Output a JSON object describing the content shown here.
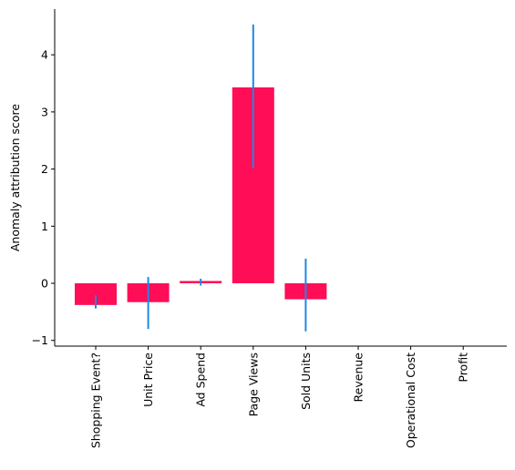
{
  "chart_data": {
    "type": "bar",
    "title": "",
    "xlabel": "",
    "ylabel": "Anomaly attribution score",
    "categories": [
      "Shopping Event?",
      "Unit Price",
      "Ad Spend",
      "Page Views",
      "Sold Units",
      "Revenue",
      "Operational Cost",
      "Profit"
    ],
    "series": [
      {
        "values": [
          -0.38,
          -0.33,
          0.04,
          3.43,
          -0.28,
          null,
          null,
          null
        ],
        "error_low": [
          -0.44,
          -0.8,
          -0.04,
          2.02,
          -0.84,
          null,
          null,
          null
        ],
        "error_high": [
          -0.21,
          0.11,
          0.08,
          4.53,
          0.43,
          null,
          null,
          null
        ]
      }
    ],
    "ylim": [
      -1.1,
      4.8
    ],
    "yticks": [
      -1,
      0,
      1,
      2,
      3,
      4
    ],
    "bar_color": "#ff0d57",
    "error_color": "#1e88e5",
    "grid": false,
    "legend": "none"
  }
}
